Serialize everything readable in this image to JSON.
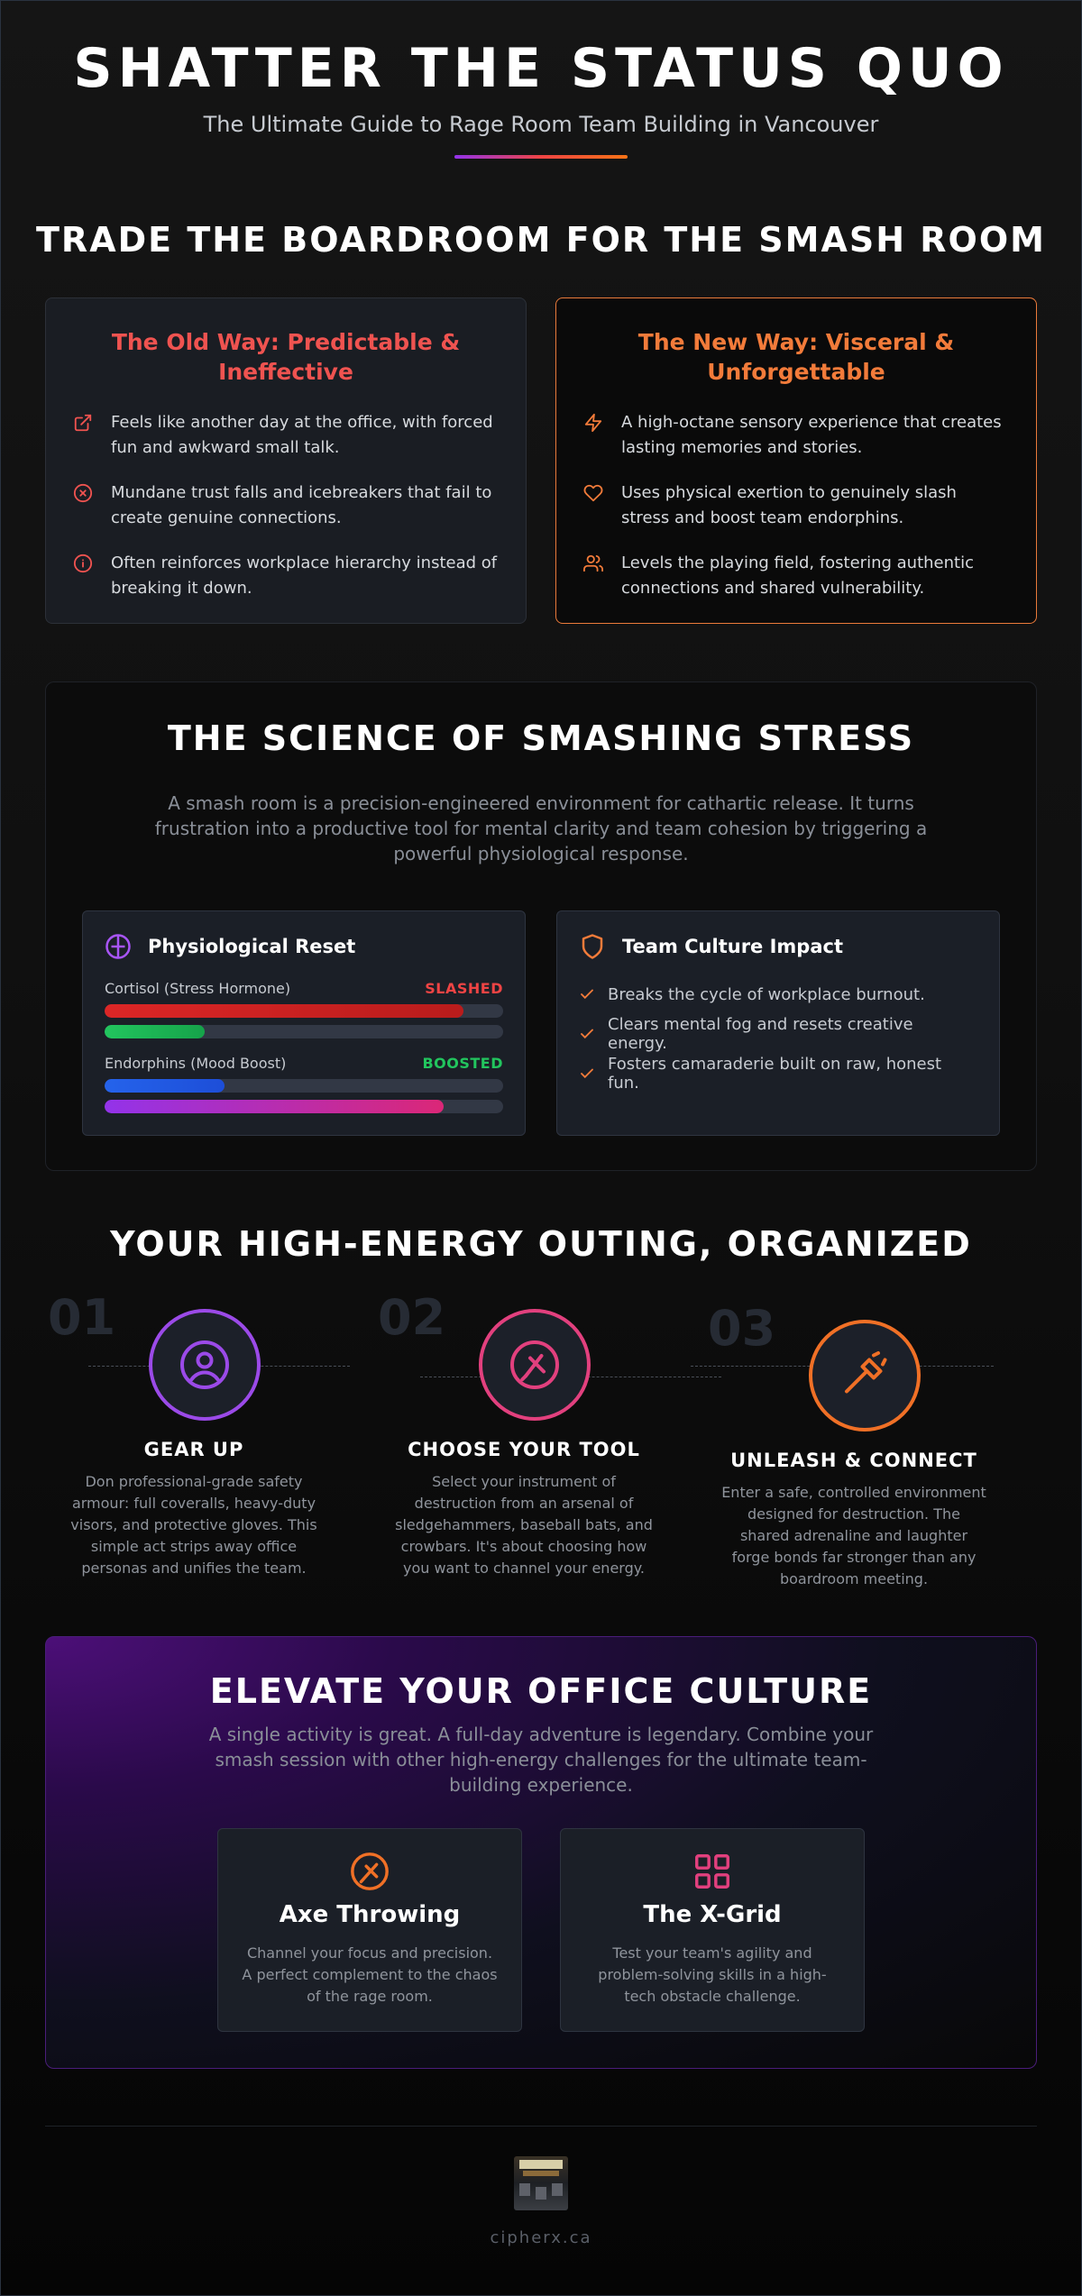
{
  "hero": {
    "title": "SHATTER THE STATUS QUO",
    "subtitle": "The Ultimate Guide to Rage Room Team Building in Vancouver"
  },
  "comparison": {
    "title": "TRADE THE BOARDROOM FOR THE SMASH ROOM",
    "old": {
      "heading": "The Old Way: Predictable & Ineffective",
      "items": [
        {
          "icon": "external-link-icon",
          "text": "Feels like another day at the office, with forced fun and awkward small talk."
        },
        {
          "icon": "x-circle-icon",
          "text": "Mundane trust falls and icebreakers that fail to create genuine connections."
        },
        {
          "icon": "info-icon",
          "text": "Often reinforces workplace hierarchy instead of breaking it down."
        }
      ]
    },
    "new": {
      "heading": "The New Way: Visceral & Unforgettable",
      "items": [
        {
          "icon": "lightning-icon",
          "text": "A high-octane sensory experience that creates lasting memories and stories."
        },
        {
          "icon": "heart-icon",
          "text": "Uses physical exertion to genuinely slash stress and boost team endorphins."
        },
        {
          "icon": "users-icon",
          "text": "Levels the playing field, fostering authentic connections and shared vulnerability."
        }
      ]
    }
  },
  "science": {
    "title": "THE SCIENCE OF SMASHING STRESS",
    "description": "A smash room is a precision-engineered environment for cathartic release. It turns frustration into a productive tool for mental clarity and team cohesion by triggering a powerful physiological response.",
    "physio": {
      "title": "Physiological Reset",
      "metrics": [
        {
          "label": "Cortisol (Stress Hormone)",
          "status": "SLASHED",
          "status_color": "#ef4444",
          "before": 0.9,
          "after": 0.25
        },
        {
          "label": "Endorphins (Mood Boost)",
          "status": "BOOSTED",
          "status_color": "#22c55e",
          "before": 0.3,
          "after": 0.85
        }
      ]
    },
    "culture": {
      "title": "Team Culture Impact",
      "items": [
        "Breaks the cycle of workplace burnout.",
        "Clears mental fog and resets creative energy.",
        "Fosters camaraderie built on raw, honest fun."
      ]
    }
  },
  "outing": {
    "title": "YOUR HIGH-ENERGY OUTING, ORGANIZED",
    "steps": [
      {
        "number": "01",
        "icon": "user-icon",
        "color": "#9b4ae8",
        "heading": "GEAR UP",
        "text": "Don professional-grade safety armour: full coveralls, heavy-duty visors, and protective gloves. This simple act strips away office personas and unifies the team."
      },
      {
        "number": "02",
        "icon": "crossed-tools-icon",
        "color": "#e2407e",
        "heading": "CHOOSE YOUR TOOL",
        "text": "Select your instrument of destruction from an arsenal of sledgehammers, baseball bats, and crowbars. It's about choosing how you want to channel your energy."
      },
      {
        "number": "03",
        "icon": "hammer-icon",
        "color": "#f07026",
        "heading": "UNLEASH & CONNECT",
        "text": "Enter a safe, controlled environment designed for destruction. The shared adrenaline and laughter forge bonds far stronger than any boardroom meeting."
      }
    ]
  },
  "elevate": {
    "title": "ELEVATE YOUR OFFICE CULTURE",
    "description": "A single activity is great. A full-day adventure is legendary. Combine your smash session with other high-energy challenges for the ultimate team-building experience.",
    "activities": [
      {
        "icon": "axe-icon",
        "color": "#f07026",
        "title": "Axe Throwing",
        "text": "Channel your focus and precision. A perfect complement to the chaos of the rage room."
      },
      {
        "icon": "grid-icon",
        "color": "#e2407e",
        "title": "The X-Grid",
        "text": "Test your team's agility and problem-solving skills in a high-tech obstacle challenge."
      }
    ]
  },
  "footer": {
    "site": "cipherx.ca"
  }
}
